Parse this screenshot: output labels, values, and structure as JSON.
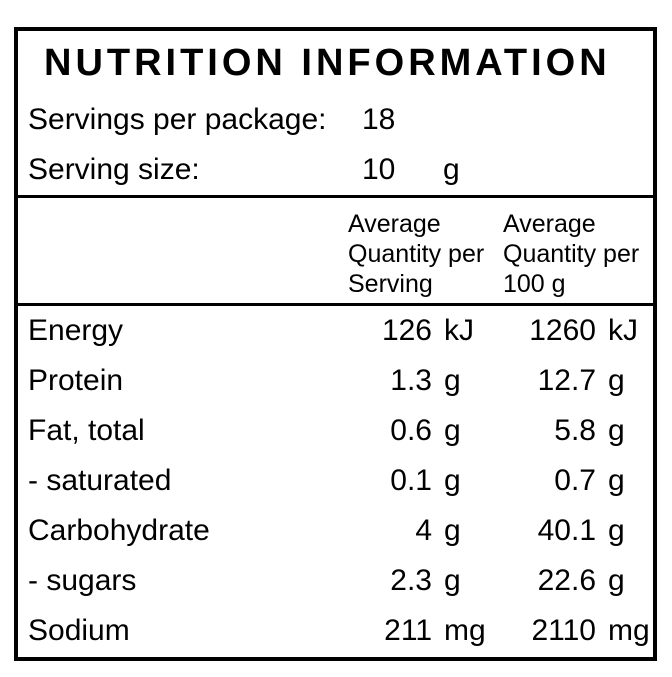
{
  "panel": {
    "title": "NUTRITION INFORMATION",
    "servings_per_package": {
      "label": "Servings per package:",
      "value": "18"
    },
    "serving_size": {
      "label": "Serving size:",
      "value": "10",
      "unit": "g"
    },
    "column_headers": {
      "per_serving": {
        "line1": "Average",
        "line2": "Quantity per",
        "line3": "Serving"
      },
      "per_100g": {
        "line1": "Average",
        "line2": "Quantity per",
        "line3": "100 g"
      }
    },
    "rows": [
      {
        "nutrient": "Energy",
        "per_serving": "126",
        "per_serving_unit": "kJ",
        "per_100g": "1260",
        "per_100g_unit": "kJ"
      },
      {
        "nutrient": "Protein",
        "per_serving": "1.3",
        "per_serving_unit": "g",
        "per_100g": "12.7",
        "per_100g_unit": "g"
      },
      {
        "nutrient": "Fat, total",
        "per_serving": "0.6",
        "per_serving_unit": "g",
        "per_100g": "5.8",
        "per_100g_unit": "g"
      },
      {
        "nutrient": "- saturated",
        "per_serving": "0.1",
        "per_serving_unit": "g",
        "per_100g": "0.7",
        "per_100g_unit": "g"
      },
      {
        "nutrient": "Carbohydrate",
        "per_serving": "4",
        "per_serving_unit": "g",
        "per_100g": "40.1",
        "per_100g_unit": "g"
      },
      {
        "nutrient": "- sugars",
        "per_serving": "2.3",
        "per_serving_unit": "g",
        "per_100g": "22.6",
        "per_100g_unit": "g"
      },
      {
        "nutrient": "Sodium",
        "per_serving": "211",
        "per_serving_unit": "mg",
        "per_100g": "2110",
        "per_100g_unit": "mg"
      }
    ],
    "colors": {
      "border": "#000000",
      "text": "#000000",
      "background": "#ffffff"
    }
  }
}
